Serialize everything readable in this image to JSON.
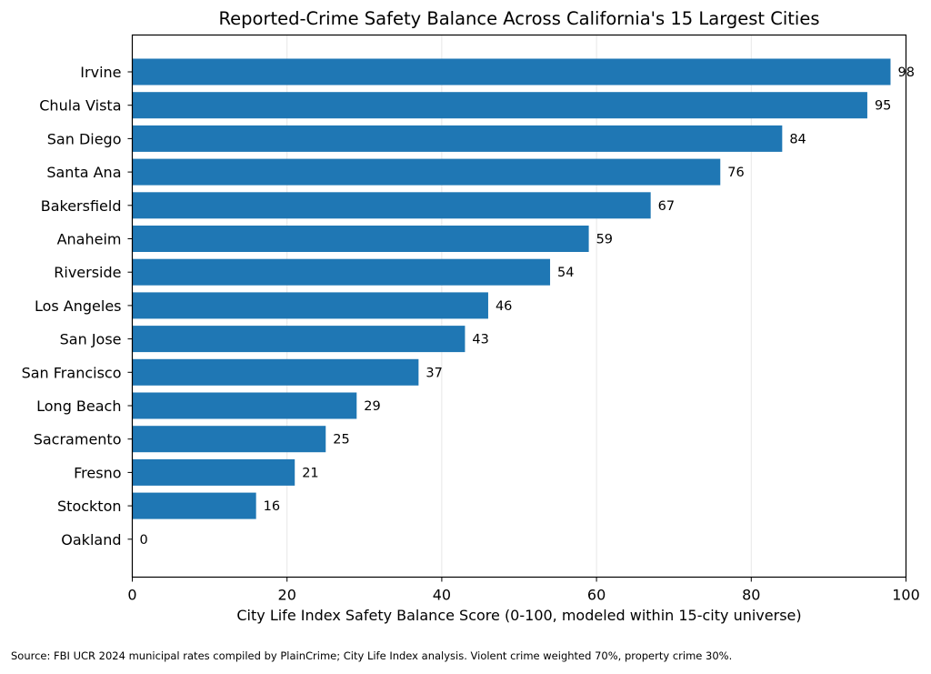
{
  "chart_data": {
    "type": "bar",
    "orientation": "horizontal",
    "title": "Reported-Crime Safety Balance Across California's 15 Largest Cities",
    "xlabel": "City Life Index Safety Balance Score (0-100, modeled within 15-city universe)",
    "ylabel": "",
    "xlim": [
      0,
      100
    ],
    "xticks": [
      0,
      20,
      40,
      60,
      80,
      100
    ],
    "grid": "vertical",
    "bar_color": "#1f77b4",
    "categories": [
      "Irvine",
      "Chula Vista",
      "San Diego",
      "Santa Ana",
      "Bakersfield",
      "Anaheim",
      "Riverside",
      "Los Angeles",
      "San Jose",
      "San Francisco",
      "Long Beach",
      "Sacramento",
      "Fresno",
      "Stockton",
      "Oakland"
    ],
    "values": [
      98,
      95,
      84,
      76,
      67,
      59,
      54,
      46,
      43,
      37,
      29,
      25,
      21,
      16,
      0
    ],
    "data_labels": [
      "98",
      "95",
      "84",
      "76",
      "67",
      "59",
      "54",
      "46",
      "43",
      "37",
      "29",
      "25",
      "21",
      "16",
      "0"
    ]
  },
  "source_note": "Source: FBI UCR 2024 municipal rates compiled by PlainCrime; City Life Index analysis. Violent crime weighted 70%, property crime 30%."
}
